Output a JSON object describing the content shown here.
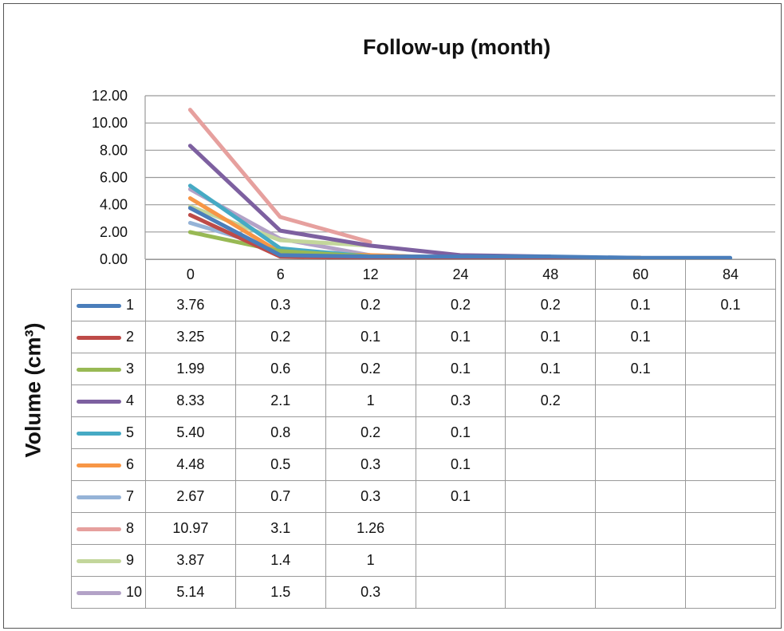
{
  "chart_data": {
    "type": "line",
    "title": "Follow-up (month)",
    "ylabel": "Volume (cm³)",
    "xlabel": "",
    "categories": [
      "0",
      "6",
      "12",
      "24",
      "48",
      "60",
      "84"
    ],
    "ylim": [
      0,
      12
    ],
    "yticks": [
      "0.00",
      "2.00",
      "4.00",
      "6.00",
      "8.00",
      "10.00",
      "12.00"
    ],
    "grid": true,
    "legend_position": "left of data table",
    "series": [
      {
        "name": "1",
        "color": "#4a7ebb",
        "values": [
          "3.76",
          "0.3",
          "0.2",
          "0.2",
          "0.2",
          "0.1",
          "0.1"
        ]
      },
      {
        "name": "2",
        "color": "#be4b48",
        "values": [
          "3.25",
          "0.2",
          "0.1",
          "0.1",
          "0.1",
          "0.1",
          ""
        ]
      },
      {
        "name": "3",
        "color": "#98b954",
        "values": [
          "1.99",
          "0.6",
          "0.2",
          "0.1",
          "0.1",
          "0.1",
          ""
        ]
      },
      {
        "name": "4",
        "color": "#7d60a0",
        "values": [
          "8.33",
          "2.1",
          "1",
          "0.3",
          "0.2",
          "",
          ""
        ]
      },
      {
        "name": "5",
        "color": "#46aac4",
        "values": [
          "5.40",
          "0.8",
          "0.2",
          "0.1",
          "",
          "",
          ""
        ]
      },
      {
        "name": "6",
        "color": "#f79646",
        "values": [
          "4.48",
          "0.5",
          "0.3",
          "0.1",
          "",
          "",
          ""
        ]
      },
      {
        "name": "7",
        "color": "#95b3d7",
        "values": [
          "2.67",
          "0.7",
          "0.3",
          "0.1",
          "",
          "",
          ""
        ]
      },
      {
        "name": "8",
        "color": "#e6a09e",
        "values": [
          "10.97",
          "3.1",
          "1.26",
          "",
          "",
          "",
          ""
        ]
      },
      {
        "name": "9",
        "color": "#c3d69b",
        "values": [
          "3.87",
          "1.4",
          "1",
          "",
          "",
          "",
          ""
        ]
      },
      {
        "name": "10",
        "color": "#b3a2c7",
        "values": [
          "5.14",
          "1.5",
          "0.3",
          "",
          "",
          "",
          ""
        ]
      }
    ]
  }
}
